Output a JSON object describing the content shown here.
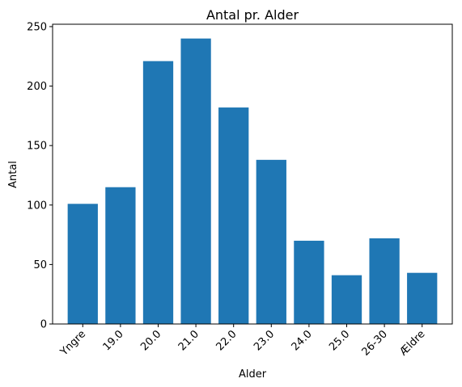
{
  "chart_data": {
    "type": "bar",
    "title": "Antal pr. Alder",
    "xlabel": "Alder",
    "ylabel": "Antal",
    "categories": [
      "Yngre",
      "19.0",
      "20.0",
      "21.0",
      "22.0",
      "23.0",
      "24.0",
      "25.0",
      "26-30",
      "Ældre"
    ],
    "values": [
      101,
      115,
      221,
      240,
      182,
      138,
      70,
      41,
      72,
      43
    ],
    "ylim": [
      0,
      252
    ],
    "yticks": [
      0,
      50,
      100,
      150,
      200,
      250
    ],
    "bar_color": "#1f77b4",
    "grid": false,
    "xtick_rotation_deg": 45
  }
}
